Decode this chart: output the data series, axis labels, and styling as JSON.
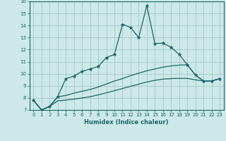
{
  "xlabel": "Humidex (Indice chaleur)",
  "x_values": [
    0,
    1,
    2,
    3,
    4,
    5,
    6,
    7,
    8,
    9,
    10,
    11,
    12,
    13,
    14,
    15,
    16,
    17,
    18,
    19,
    20,
    21,
    22,
    23
  ],
  "line1": [
    7.8,
    7.0,
    7.3,
    8.1,
    9.6,
    9.8,
    10.2,
    10.4,
    10.6,
    11.35,
    11.6,
    14.1,
    13.85,
    13.0,
    15.65,
    12.5,
    12.55,
    12.2,
    11.6,
    10.75,
    9.9,
    9.4,
    9.4,
    9.6
  ],
  "line2": [
    7.8,
    7.0,
    7.3,
    8.1,
    8.2,
    8.4,
    8.55,
    8.7,
    8.9,
    9.15,
    9.4,
    9.6,
    9.85,
    10.05,
    10.25,
    10.4,
    10.55,
    10.65,
    10.72,
    10.75,
    9.9,
    9.4,
    9.4,
    9.6
  ],
  "line3": [
    7.8,
    7.0,
    7.3,
    7.75,
    7.82,
    7.9,
    8.0,
    8.1,
    8.25,
    8.42,
    8.6,
    8.78,
    8.96,
    9.14,
    9.32,
    9.46,
    9.56,
    9.6,
    9.62,
    9.62,
    9.5,
    9.4,
    9.4,
    9.6
  ],
  "bg_color": "#cce8e8",
  "grid_color": "#aacccc",
  "line_color": "#1a6666",
  "ylim": [
    7,
    16
  ],
  "xlim": [
    -0.5,
    23.5
  ],
  "yticks": [
    7,
    8,
    9,
    10,
    11,
    12,
    13,
    14,
    15,
    16
  ],
  "xticks": [
    0,
    1,
    2,
    3,
    4,
    5,
    6,
    7,
    8,
    9,
    10,
    11,
    12,
    13,
    14,
    15,
    16,
    17,
    18,
    19,
    20,
    21,
    22,
    23
  ]
}
